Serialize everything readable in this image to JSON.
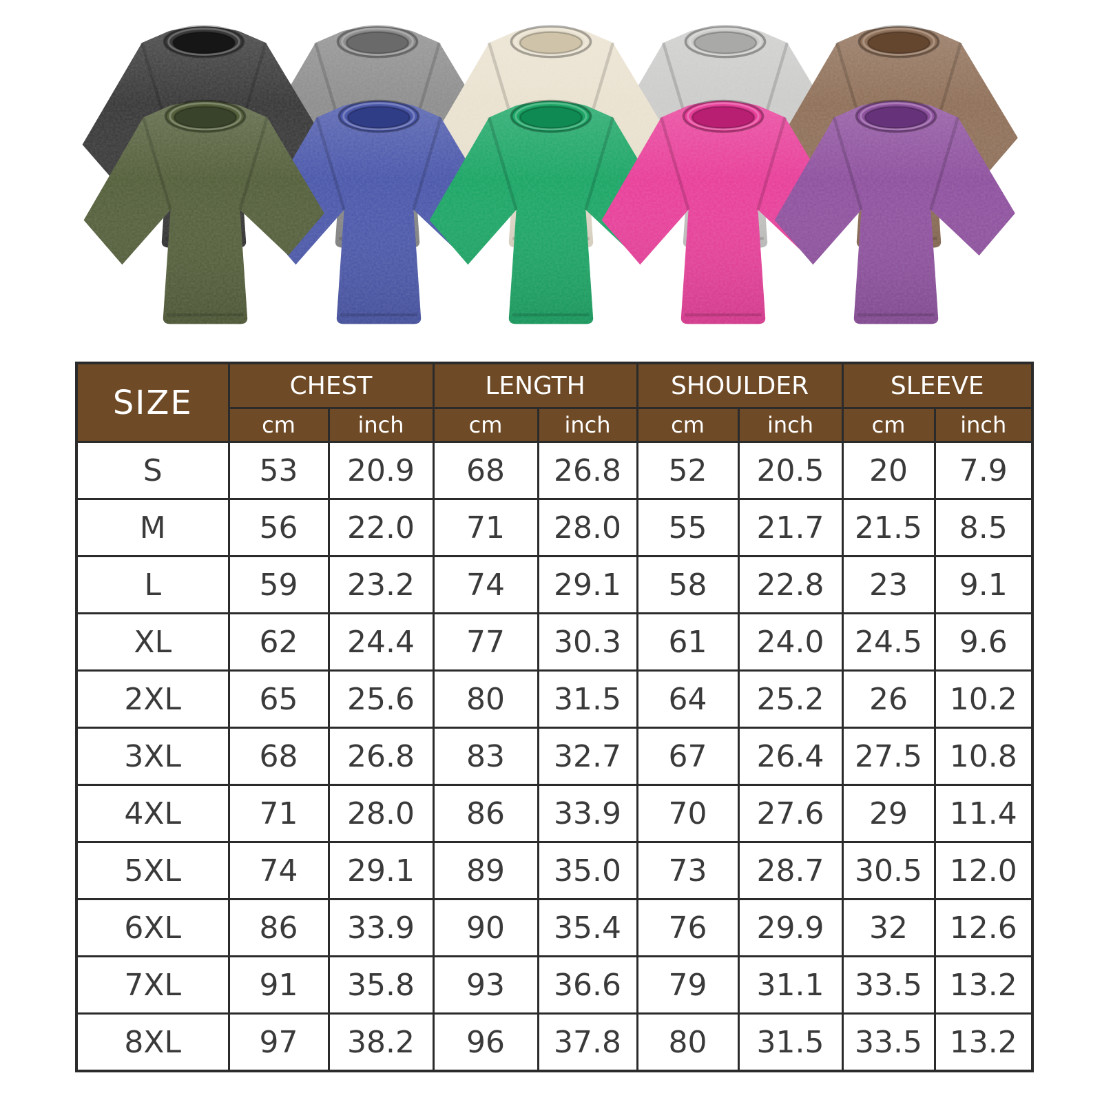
{
  "canvas": {
    "background": "#ffffff"
  },
  "product_gallery": {
    "description": "Ten acid-washed oversized crew-neck t-shirts laid flat in two overlapping rows",
    "back_row": [
      {
        "name": "black",
        "color": "#3a3a3a",
        "collar_inner": "#161616"
      },
      {
        "name": "gray",
        "color": "#8e8e8e",
        "collar_inner": "#6a6a6a"
      },
      {
        "name": "cream",
        "color": "#eae2d0",
        "collar_inner": "#cfc3a9"
      },
      {
        "name": "light-gray",
        "color": "#cccccb",
        "collar_inner": "#a9a9a7"
      },
      {
        "name": "brown",
        "color": "#90715a",
        "collar_inner": "#64462f"
      }
    ],
    "front_row": [
      {
        "name": "army-green",
        "color": "#55603c",
        "collar_inner": "#39422a"
      },
      {
        "name": "blue",
        "color": "#4c59ab",
        "collar_inner": "#2f3c86"
      },
      {
        "name": "green",
        "color": "#1da666",
        "collar_inner": "#0e8a52"
      },
      {
        "name": "rose-pink",
        "color": "#e8409a",
        "collar_inner": "#b81f72"
      },
      {
        "name": "purple",
        "color": "#8f529f",
        "collar_inner": "#66337a"
      }
    ]
  },
  "size_chart": {
    "style": {
      "header_bg": "#6e4a26",
      "header_text": "#ffffff",
      "grid_color": "#2b2b2b",
      "cell_bg": "#ffffff",
      "cell_text": "#3a3a3a"
    },
    "header": {
      "size_label": "SIZE",
      "groups": [
        {
          "label": "CHEST"
        },
        {
          "label": "LENGTH"
        },
        {
          "label": "SHOULDER"
        },
        {
          "label": "SLEEVE"
        }
      ],
      "units": [
        "cm",
        "inch"
      ]
    },
    "rows": [
      {
        "size": "S",
        "cells": [
          "53",
          "20.9",
          "68",
          "26.8",
          "52",
          "20.5",
          "20",
          "7.9"
        ]
      },
      {
        "size": "M",
        "cells": [
          "56",
          "22.0",
          "71",
          "28.0",
          "55",
          "21.7",
          "21.5",
          "8.5"
        ]
      },
      {
        "size": "L",
        "cells": [
          "59",
          "23.2",
          "74",
          "29.1",
          "58",
          "22.8",
          "23",
          "9.1"
        ]
      },
      {
        "size": "XL",
        "cells": [
          "62",
          "24.4",
          "77",
          "30.3",
          "61",
          "24.0",
          "24.5",
          "9.6"
        ]
      },
      {
        "size": "2XL",
        "cells": [
          "65",
          "25.6",
          "80",
          "31.5",
          "64",
          "25.2",
          "26",
          "10.2"
        ]
      },
      {
        "size": "3XL",
        "cells": [
          "68",
          "26.8",
          "83",
          "32.7",
          "67",
          "26.4",
          "27.5",
          "10.8"
        ]
      },
      {
        "size": "4XL",
        "cells": [
          "71",
          "28.0",
          "86",
          "33.9",
          "70",
          "27.6",
          "29",
          "11.4"
        ]
      },
      {
        "size": "5XL",
        "cells": [
          "74",
          "29.1",
          "89",
          "35.0",
          "73",
          "28.7",
          "30.5",
          "12.0"
        ]
      },
      {
        "size": "6XL",
        "cells": [
          "86",
          "33.9",
          "90",
          "35.4",
          "76",
          "29.9",
          "32",
          "12.6"
        ]
      },
      {
        "size": "7XL",
        "cells": [
          "91",
          "35.8",
          "93",
          "36.6",
          "79",
          "31.1",
          "33.5",
          "13.2"
        ]
      },
      {
        "size": "8XL",
        "cells": [
          "97",
          "38.2",
          "96",
          "37.8",
          "80",
          "31.5",
          "33.5",
          "13.2"
        ]
      }
    ]
  }
}
